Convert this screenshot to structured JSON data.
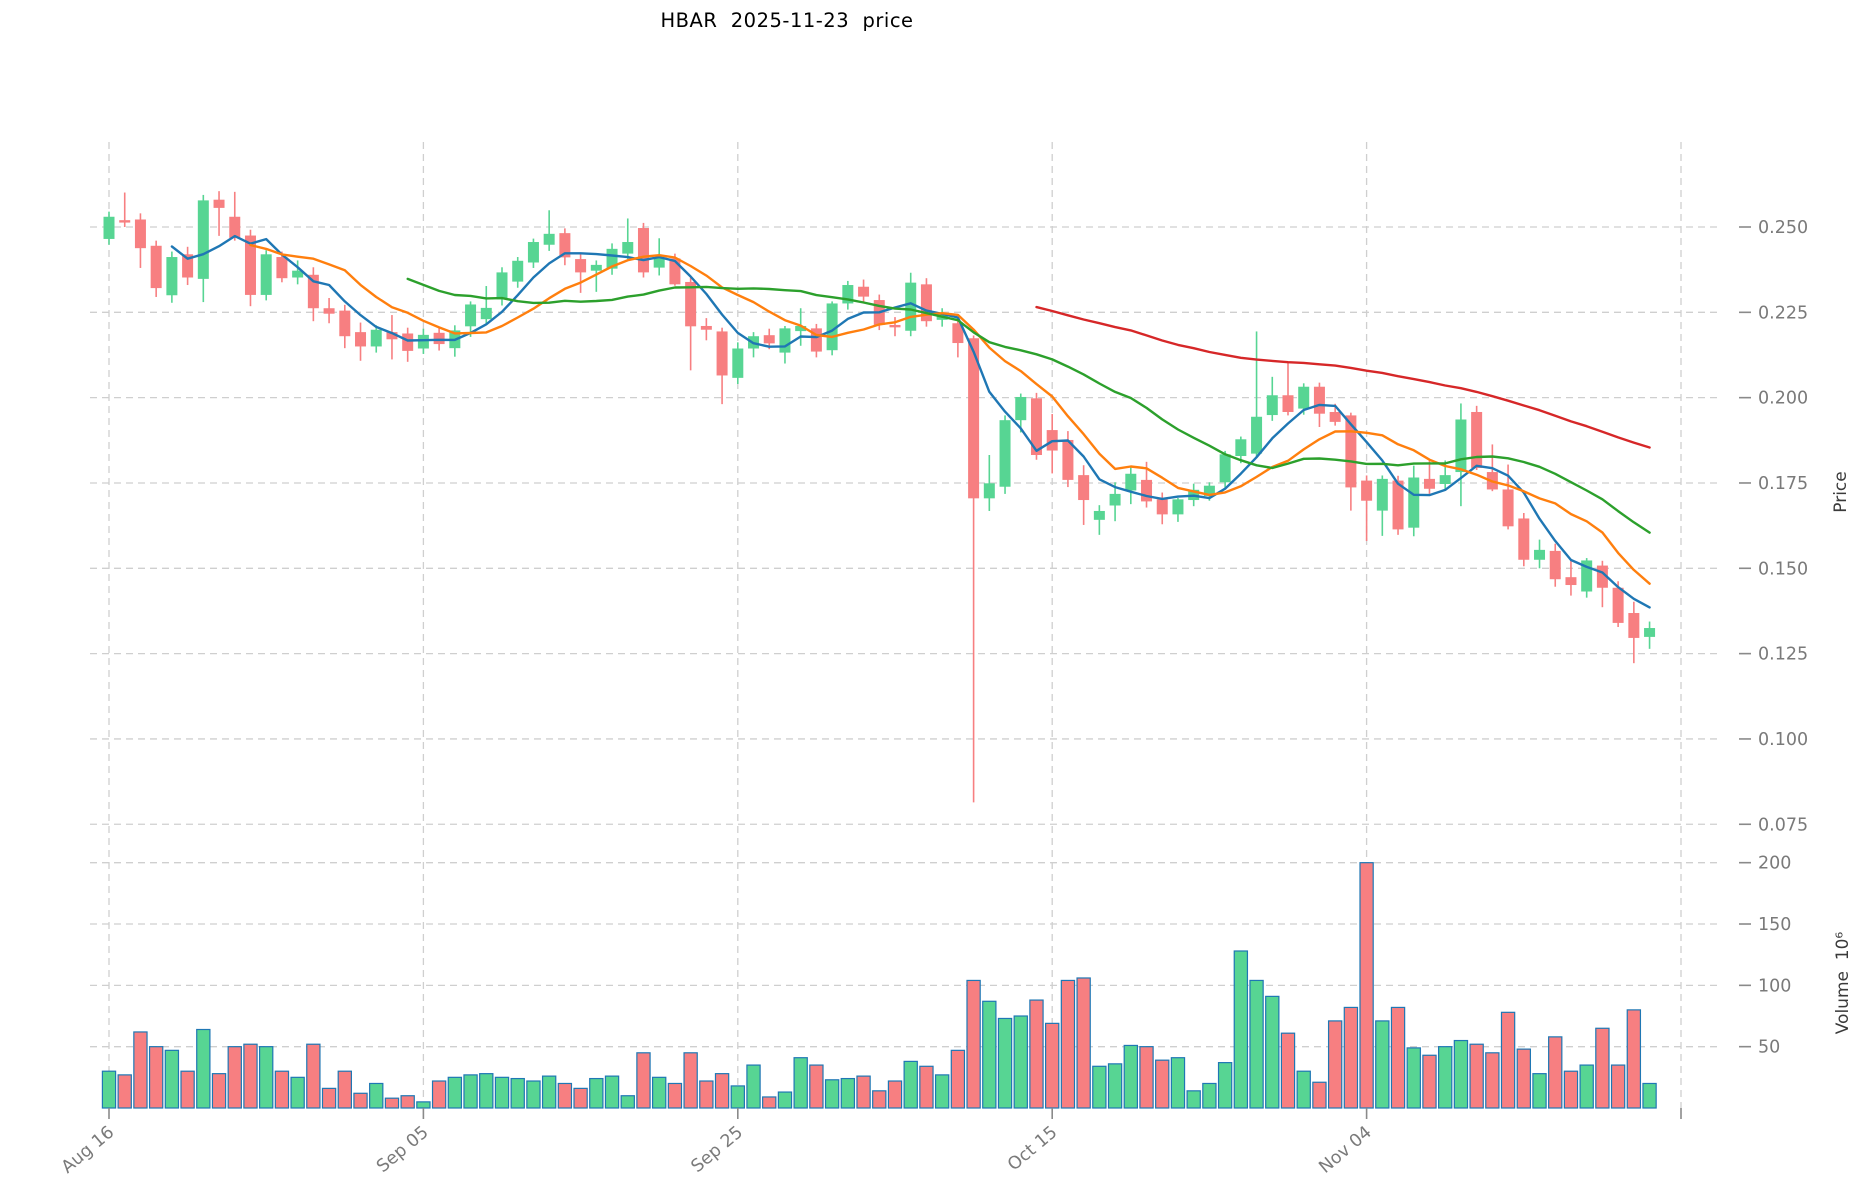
{
  "title": "HBAR  2025-11-23  price",
  "price_axis_label": "Price",
  "volume_axis_label": "Volume  10⁶",
  "colors": {
    "up": "#57d593",
    "down": "#f77f81",
    "volume_edge": "#1f77b4",
    "grid": "#cfcfcf",
    "tick_text": "#7a7a7a",
    "ma_blue": "#1f77b4",
    "ma_orange": "#ff7f0e",
    "ma_green": "#2ca02c",
    "ma_red": "#d62728"
  },
  "chart_data": {
    "type": "candlestick+volume",
    "title": "HBAR  2025-11-23  price",
    "xlabel": "",
    "price_ylabel": "Price",
    "volume_ylabel": "Volume  10⁶",
    "grid": "dashed",
    "price_ylim": [
      0.068,
      0.262
    ],
    "volume_ylim_millions": [
      0,
      205
    ],
    "x_ticks": [
      {
        "label": "Aug 16",
        "index": 0
      },
      {
        "label": "Sep 05",
        "index": 20
      },
      {
        "label": "Sep 25",
        "index": 40
      },
      {
        "label": "Oct 15",
        "index": 60
      },
      {
        "label": "Nov 04",
        "index": 80
      },
      {
        "label": "",
        "index": 100
      }
    ],
    "price_ticks": [
      {
        "label": "0.250",
        "value": 0.25
      },
      {
        "label": "0.225",
        "value": 0.225
      },
      {
        "label": "0.200",
        "value": 0.2
      },
      {
        "label": "0.175",
        "value": 0.175
      },
      {
        "label": "0.150",
        "value": 0.15
      },
      {
        "label": "0.125",
        "value": 0.125
      },
      {
        "label": "0.100",
        "value": 0.1
      },
      {
        "label": "0.075",
        "value": 0.075
      }
    ],
    "volume_ticks": [
      {
        "label": "200",
        "value": 200
      },
      {
        "label": "150",
        "value": 150
      },
      {
        "label": "100",
        "value": 100
      },
      {
        "label": "50",
        "value": 50
      }
    ],
    "moving_averages": [
      {
        "name": "sma-5",
        "window": 5,
        "color": "#1f77b4"
      },
      {
        "name": "sma-10",
        "window": 10,
        "color": "#ff7f0e"
      },
      {
        "name": "sma-20",
        "window": 20,
        "color": "#2ca02c"
      },
      {
        "name": "sma-60",
        "window": 60,
        "color": "#d62728"
      }
    ],
    "candles": {
      "open": [
        0.2465,
        0.252,
        0.2522,
        0.2445,
        0.23,
        0.242,
        0.2348,
        0.258,
        0.253,
        0.2475,
        0.2301,
        0.2412,
        0.2352,
        0.236,
        0.2262,
        0.2255,
        0.2192,
        0.215,
        0.2192,
        0.2188,
        0.2144,
        0.219,
        0.2145,
        0.2209,
        0.223,
        0.2288,
        0.234,
        0.2396,
        0.2448,
        0.2482,
        0.2406,
        0.2372,
        0.2378,
        0.2422,
        0.2497,
        0.2381,
        0.2408,
        0.2339,
        0.221,
        0.2194,
        0.2058,
        0.2144,
        0.2183,
        0.2132,
        0.2195,
        0.2203,
        0.2139,
        0.2276,
        0.2325,
        0.2286,
        0.2213,
        0.2196,
        0.2332,
        0.2228,
        0.2218,
        0.2174,
        0.1705,
        0.1739,
        0.1934,
        0.1998,
        0.1905,
        0.1876,
        0.1773,
        0.1642,
        0.1684,
        0.1728,
        0.1759,
        0.1702,
        0.1658,
        0.17,
        0.1712,
        0.1752,
        0.1829,
        0.1836,
        0.1949,
        0.2007,
        0.1968,
        0.2032,
        0.1958,
        0.1948,
        0.1757,
        0.1669,
        0.1757,
        0.1619,
        0.1762,
        0.1747,
        0.1782,
        0.1958,
        0.1782,
        0.1731,
        0.1646,
        0.1525,
        0.1551,
        0.1474,
        0.1432,
        0.1508,
        0.1443,
        0.1369,
        0.1299
      ],
      "high": [
        0.2545,
        0.2601,
        0.254,
        0.246,
        0.2428,
        0.2442,
        0.2594,
        0.2605,
        0.2603,
        0.2492,
        0.2432,
        0.2428,
        0.2402,
        0.2382,
        0.2292,
        0.2272,
        0.222,
        0.2212,
        0.2242,
        0.2205,
        0.2202,
        0.2206,
        0.2212,
        0.2282,
        0.2327,
        0.2382,
        0.2412,
        0.2466,
        0.2549,
        0.2496,
        0.2422,
        0.2402,
        0.2452,
        0.2525,
        0.2512,
        0.2467,
        0.2422,
        0.2352,
        0.2233,
        0.2205,
        0.2162,
        0.2192,
        0.2202,
        0.221,
        0.2262,
        0.2216,
        0.2282,
        0.2342,
        0.2346,
        0.2302,
        0.2236,
        0.2366,
        0.235,
        0.2262,
        0.2232,
        0.2182,
        0.1832,
        0.1948,
        0.2012,
        0.2014,
        0.1952,
        0.1902,
        0.1802,
        0.1685,
        0.1752,
        0.1801,
        0.1812,
        0.1722,
        0.1706,
        0.1748,
        0.1752,
        0.1844,
        0.1886,
        0.2194,
        0.2061,
        0.2106,
        0.2042,
        0.2044,
        0.1982,
        0.1956,
        0.1772,
        0.1772,
        0.1771,
        0.1801,
        0.1815,
        0.1816,
        0.1983,
        0.1976,
        0.1863,
        0.1804,
        0.1662,
        0.1584,
        0.1572,
        0.1527,
        0.153,
        0.1522,
        0.1462,
        0.1402,
        0.1344
      ],
      "low": [
        0.2448,
        0.25,
        0.238,
        0.2295,
        0.2278,
        0.233,
        0.228,
        0.2474,
        0.246,
        0.2268,
        0.2285,
        0.2338,
        0.2332,
        0.2224,
        0.2218,
        0.2145,
        0.2108,
        0.2132,
        0.2112,
        0.2105,
        0.2128,
        0.2138,
        0.212,
        0.2178,
        0.2214,
        0.227,
        0.2322,
        0.238,
        0.243,
        0.2388,
        0.2307,
        0.231,
        0.236,
        0.2406,
        0.2352,
        0.2358,
        0.2328,
        0.208,
        0.2168,
        0.1981,
        0.204,
        0.2118,
        0.2142,
        0.21,
        0.2152,
        0.2118,
        0.2124,
        0.2258,
        0.228,
        0.2198,
        0.218,
        0.218,
        0.2208,
        0.2208,
        0.2118,
        0.0814,
        0.1668,
        0.1718,
        0.1898,
        0.1818,
        0.1778,
        0.1738,
        0.1627,
        0.1598,
        0.1638,
        0.1688,
        0.1678,
        0.1629,
        0.1636,
        0.1682,
        0.1698,
        0.1736,
        0.1808,
        0.1826,
        0.1932,
        0.1948,
        0.195,
        0.1914,
        0.1918,
        0.1669,
        0.158,
        0.1595,
        0.1598,
        0.1594,
        0.1718,
        0.1728,
        0.1682,
        0.1788,
        0.1726,
        0.1614,
        0.1506,
        0.15,
        0.1446,
        0.142,
        0.1414,
        0.1386,
        0.1328,
        0.1222,
        0.1264
      ],
      "close": [
        0.253,
        0.2513,
        0.2438,
        0.2321,
        0.2412,
        0.2352,
        0.2578,
        0.2556,
        0.2468,
        0.2301,
        0.242,
        0.235,
        0.2372,
        0.2262,
        0.2246,
        0.218,
        0.215,
        0.2199,
        0.2171,
        0.2137,
        0.2184,
        0.2157,
        0.2197,
        0.2273,
        0.2263,
        0.2367,
        0.2401,
        0.2456,
        0.248,
        0.2411,
        0.2367,
        0.2389,
        0.2436,
        0.2456,
        0.2367,
        0.2411,
        0.2332,
        0.2209,
        0.2199,
        0.2065,
        0.2144,
        0.218,
        0.2159,
        0.2203,
        0.221,
        0.2135,
        0.2276,
        0.233,
        0.2296,
        0.2213,
        0.2206,
        0.2337,
        0.2224,
        0.2247,
        0.216,
        0.1705,
        0.1749,
        0.1934,
        0.2002,
        0.1832,
        0.1845,
        0.1759,
        0.17,
        0.1668,
        0.1718,
        0.1777,
        0.1696,
        0.1658,
        0.1702,
        0.173,
        0.1742,
        0.1834,
        0.1878,
        0.1944,
        0.2007,
        0.1958,
        0.2032,
        0.1953,
        0.1929,
        0.1737,
        0.1698,
        0.1762,
        0.1614,
        0.1766,
        0.1733,
        0.1773,
        0.1936,
        0.1794,
        0.1731,
        0.1623,
        0.1525,
        0.1554,
        0.1468,
        0.1451,
        0.1523,
        0.1443,
        0.134,
        0.1296,
        0.1325
      ],
      "volume_millions": [
        30,
        27,
        62,
        50,
        47,
        30,
        64,
        28,
        50,
        52,
        50,
        30,
        25,
        52,
        16,
        30,
        12,
        20,
        8,
        10,
        5,
        22,
        25,
        27,
        28,
        25,
        24,
        22,
        26,
        20,
        16,
        24,
        26,
        10,
        45,
        25,
        20,
        45,
        22,
        28,
        18,
        35,
        9,
        13,
        41,
        35,
        23,
        24,
        26,
        14,
        22,
        38,
        34,
        27,
        47,
        104,
        87,
        73,
        75,
        88,
        69,
        104,
        106,
        34,
        36,
        51,
        50,
        39,
        41,
        14,
        20,
        37,
        128,
        104,
        91,
        61,
        30,
        21,
        71,
        82,
        200,
        71,
        82,
        49,
        43,
        50,
        55,
        52,
        45,
        78,
        48,
        28,
        58,
        30,
        35,
        65,
        35,
        80,
        20
      ]
    }
  }
}
